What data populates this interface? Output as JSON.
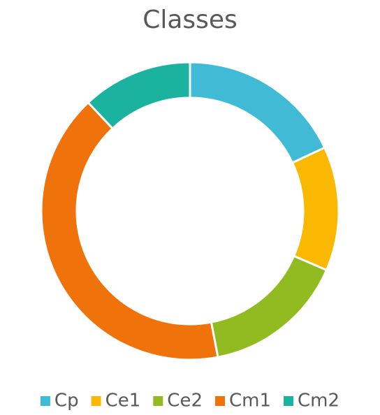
{
  "chart_data": {
    "type": "donut",
    "title": "Classes",
    "categories": [
      "Cp",
      "Ce1",
      "Ce2",
      "Cm1",
      "Cm2"
    ],
    "values": [
      18,
      13.5,
      15.5,
      41,
      12
    ],
    "colors": [
      "#41bbd5",
      "#fbb800",
      "#92bb22",
      "#ef720b",
      "#1bb3a0"
    ],
    "legend": "bottom"
  }
}
